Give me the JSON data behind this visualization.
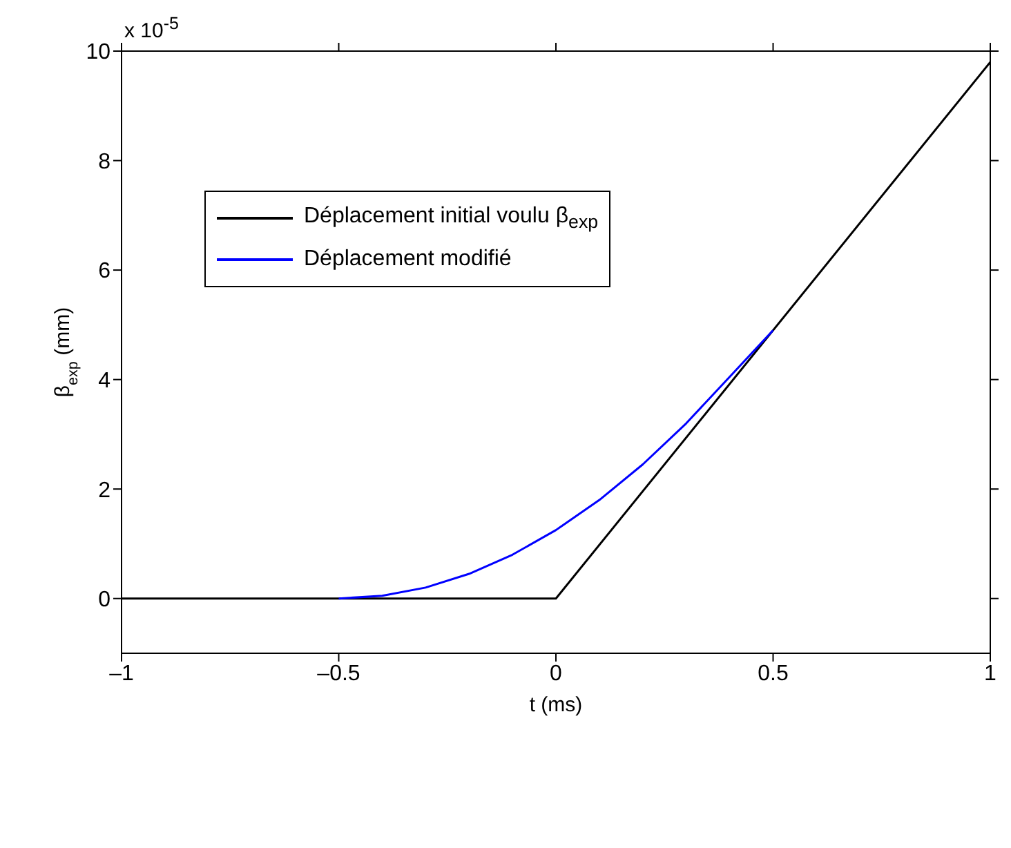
{
  "chart_data": {
    "type": "line",
    "xlabel": "t (ms)",
    "ylabel": "β$_{exp}$ (mm)",
    "annotations": [
      "x 10$^{-5}$"
    ],
    "xlim": [
      -1,
      1
    ],
    "xticks": [
      {
        "value": -1,
        "label": "–1"
      },
      {
        "value": -0.5,
        "label": "–0.5"
      },
      0,
      0.5,
      1
    ],
    "ylim": [
      -1,
      10
    ],
    "yticks": [
      0,
      2,
      4,
      6,
      8,
      10
    ],
    "legend": "top left",
    "marker": "none",
    "line_style": "solid",
    "series": [
      {
        "name": "Déplacement initial voulu β$_{exp}$",
        "color": "#000000",
        "x": [
          -1,
          0,
          1
        ],
        "values": [
          0,
          0,
          9.8
        ]
      },
      {
        "name": "Déplacement modifié",
        "color": "#0000ff",
        "x": [
          -0.5,
          -0.4,
          -0.3,
          -0.2,
          -0.1,
          0,
          0.1,
          0.2,
          0.3,
          0.4,
          0.5
        ],
        "values": [
          0,
          0.05,
          0.2,
          0.45,
          0.8,
          1.25,
          1.8,
          2.45,
          3.2,
          4.05,
          4.9
        ]
      }
    ]
  }
}
